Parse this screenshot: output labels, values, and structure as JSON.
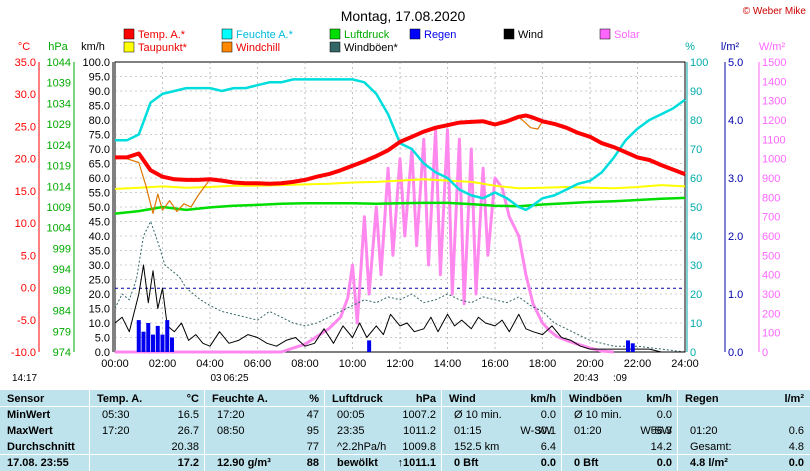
{
  "chart_data": {
    "type": "line",
    "title": "Montag, 17.08.2020",
    "copyright": "© Weber Mike",
    "x_ticks": [
      "00:00",
      "02:00",
      "04:00",
      "06:00",
      "08:00",
      "10:00",
      "12:00",
      "14:00",
      "16:00",
      "18:00",
      "20:00",
      "22:00",
      "24:00"
    ],
    "axes": {
      "temp": {
        "unit": "°C",
        "ticks": [
          "35.0",
          "30.0",
          "25.0",
          "20.0",
          "15.0",
          "10.0",
          "5.0",
          "0.0",
          "-5.0",
          "-10.0"
        ],
        "range": [
          -10,
          35
        ],
        "color": "#ff0000"
      },
      "pressure": {
        "unit": "hPa",
        "ticks": [
          "1044",
          "1039",
          "1034",
          "1029",
          "1024",
          "1019",
          "1014",
          "1009",
          "1004",
          "999",
          "994",
          "989",
          "984",
          "979",
          "974"
        ],
        "range": [
          974,
          1044
        ],
        "color": "#00aa00"
      },
      "wind": {
        "unit": "km/h",
        "ticks": [
          "100.0",
          "95.0",
          "90.0",
          "85.0",
          "80.0",
          "75.0",
          "70.0",
          "65.0",
          "60.0",
          "55.0",
          "50.0",
          "45.0",
          "40.0",
          "35.0",
          "30.0",
          "25.0",
          "20.0",
          "15.0",
          "10.0",
          "5.0",
          "0.0"
        ],
        "range": [
          0,
          100
        ],
        "color": "#000000"
      },
      "humidity": {
        "unit": "%",
        "ticks": [
          "100",
          "90",
          "80",
          "70",
          "60",
          "50",
          "40",
          "30",
          "20",
          "10",
          "0"
        ],
        "range": [
          0,
          100
        ],
        "color": "#00aaaa"
      },
      "rain": {
        "unit": "l/m²",
        "ticks": [
          "5.0",
          "4.0",
          "3.0",
          "2.0",
          "1.0",
          "0.0"
        ],
        "range": [
          0,
          5
        ],
        "color": "#0000aa"
      },
      "solar": {
        "unit": "W/m²",
        "ticks": [
          "1500",
          "1400",
          "1300",
          "1200",
          "1100",
          "1000",
          "900",
          "800",
          "700",
          "600",
          "500",
          "400",
          "300",
          "200",
          "100",
          "0"
        ],
        "range": [
          0,
          1500
        ],
        "color": "#ff66ff"
      }
    },
    "legend": [
      {
        "name": "Temp. A.*",
        "color": "#ff0000"
      },
      {
        "name": "Feuchte A.*",
        "color": "#00ffff"
      },
      {
        "name": "Luftdruck",
        "color": "#00dd00"
      },
      {
        "name": "Regen",
        "color": "#0000ff"
      },
      {
        "name": "Wind",
        "color": "#000000"
      },
      {
        "name": "Solar",
        "color": "#ff66ff"
      },
      {
        "name": "Taupunkt*",
        "color": "#ffff00"
      },
      {
        "name": "Windchill",
        "color": "#ff8800"
      },
      {
        "name": "Windböen*",
        "color": "#336666"
      }
    ],
    "series": [
      {
        "name": "Temp. A.*",
        "axis": "temp",
        "color": "#ff0000",
        "x": [
          0,
          0.5,
          1,
          1.5,
          2,
          2.5,
          3,
          3.5,
          4,
          4.5,
          5,
          5.5,
          6,
          6.5,
          7,
          7.5,
          8,
          8.5,
          9,
          9.5,
          10,
          10.5,
          11,
          11.5,
          12,
          12.5,
          13,
          13.5,
          14,
          14.5,
          15,
          15.5,
          16,
          16.5,
          17,
          17.3,
          17.5,
          18,
          18.5,
          19,
          19.5,
          20,
          20.5,
          21,
          21.5,
          22,
          22.5,
          23,
          23.5,
          24
        ],
        "y": [
          20.2,
          20.2,
          20.8,
          18.2,
          17.2,
          16.8,
          16.7,
          16.7,
          16.8,
          16.6,
          16.3,
          16.2,
          16.2,
          16.1,
          16.2,
          16.4,
          16.7,
          17.2,
          17.6,
          18.2,
          18.9,
          19.6,
          20.4,
          21.3,
          22.6,
          23.4,
          24.2,
          24.8,
          25.2,
          25.6,
          25.7,
          25.8,
          25.3,
          25.8,
          26.5,
          26.7,
          26.5,
          25.8,
          25.4,
          24.8,
          24.0,
          23.4,
          22.4,
          21.8,
          21.0,
          20.2,
          19.8,
          19.0,
          18.3,
          17.6
        ]
      },
      {
        "name": "Feuchte A.*",
        "axis": "humidity",
        "color": "#00dddd",
        "x": [
          0,
          0.5,
          1,
          1.5,
          2,
          2.5,
          3,
          3.5,
          4,
          4.5,
          5,
          5.5,
          6,
          6.5,
          7,
          7.5,
          8,
          8.5,
          9,
          9.5,
          10,
          10.5,
          11,
          11.5,
          12,
          12.5,
          13,
          13.5,
          14,
          14.5,
          15,
          15.5,
          16,
          16.5,
          17,
          17.3,
          17.5,
          18,
          18.5,
          19,
          19.5,
          20,
          20.5,
          21,
          21.5,
          22,
          22.5,
          23,
          23.5,
          24
        ],
        "y": [
          73,
          73,
          75,
          86,
          89,
          90,
          91,
          91,
          91,
          90,
          91,
          91,
          92,
          93,
          93,
          94,
          94,
          94,
          94,
          94,
          94,
          93,
          89,
          82,
          72,
          70,
          65,
          62,
          60,
          56,
          54,
          53,
          55,
          53,
          50,
          49,
          50,
          53,
          54,
          56,
          58,
          59,
          62,
          67,
          73,
          77,
          80,
          82,
          84,
          87
        ]
      },
      {
        "name": "Luftdruck",
        "axis": "pressure",
        "color": "#00dd00",
        "x": [
          0,
          1,
          2,
          3,
          4,
          5,
          6,
          7,
          8,
          9,
          10,
          11,
          12,
          13,
          14,
          15,
          16,
          17,
          18,
          19,
          20,
          21,
          22,
          23,
          24
        ],
        "y": [
          1007.4,
          1008.0,
          1009.0,
          1008.3,
          1008.9,
          1009.3,
          1009.5,
          1009.8,
          1009.9,
          1009.9,
          1009.9,
          1009.8,
          1009.9,
          1010.0,
          1010.0,
          1009.7,
          1009.3,
          1009.2,
          1009.6,
          1009.9,
          1010.2,
          1010.4,
          1010.7,
          1011.0,
          1011.2
        ]
      },
      {
        "name": "Taupunkt*",
        "axis": "temp",
        "color": "#ffff00",
        "x": [
          0,
          1,
          2,
          3,
          4,
          5,
          6,
          7,
          8,
          9,
          10,
          11,
          12,
          13,
          14,
          15,
          16,
          17,
          18,
          19,
          20,
          21,
          22,
          23,
          24
        ],
        "y": [
          15.3,
          15.5,
          15.7,
          15.5,
          15.6,
          15.8,
          15.8,
          15.9,
          16.0,
          16.1,
          16.3,
          16.4,
          16.6,
          16.8,
          16.6,
          16.4,
          15.8,
          15.4,
          15.5,
          15.6,
          15.5,
          15.4,
          15.6,
          15.9,
          15.7
        ]
      },
      {
        "name": "Windchill",
        "axis": "temp",
        "color": "#dd7700",
        "x": [
          0,
          0.5,
          1,
          1.3,
          1.6,
          1.8,
          2,
          2.3,
          2.6,
          2.9,
          3.2,
          3.5,
          4,
          4.5,
          5,
          5.5,
          6,
          6.5,
          7,
          7.5,
          8,
          8.5,
          9,
          9.5,
          10,
          10.5,
          11,
          11.5,
          12,
          12.5,
          13,
          13.5,
          14,
          14.5,
          15,
          15.5,
          16,
          16.5,
          17,
          17.3,
          17.5,
          17.8,
          18,
          18.5,
          19
        ],
        "y": [
          20.2,
          20.0,
          19.4,
          15.8,
          11.5,
          14.5,
          12.0,
          13.5,
          11.8,
          13.0,
          12.5,
          14.3,
          16.8,
          16.5,
          16.3,
          16.2,
          16.2,
          16.1,
          16.2,
          16.4,
          16.7,
          17.2,
          17.6,
          18.2,
          18.9,
          19.6,
          20.4,
          21.3,
          22.6,
          23.4,
          24.2,
          24.8,
          25.2,
          25.6,
          25.7,
          25.8,
          25.3,
          25.8,
          26.5,
          25.5,
          24.8,
          24.6,
          25.8,
          25.4,
          24.8
        ]
      },
      {
        "name": "Wind",
        "axis": "wind",
        "color": "#000000",
        "x": [
          0,
          0.3,
          0.6,
          1,
          1.2,
          1.4,
          1.6,
          1.8,
          2,
          2.2,
          2.5,
          2.8,
          3.1,
          3.4,
          3.7,
          4,
          4.4,
          4.8,
          5.2,
          5.6,
          6,
          6.4,
          6.8,
          7.2,
          7.6,
          8,
          8.4,
          8.8,
          9.2,
          9.6,
          10,
          10.3,
          10.6,
          11,
          11.3,
          11.6,
          12,
          12.3,
          12.6,
          13,
          13.3,
          13.6,
          14,
          14.3,
          14.6,
          15,
          15.3,
          15.6,
          16,
          16.3,
          16.6,
          17,
          17.3,
          17.6,
          18,
          18.4,
          18.8,
          19.2,
          19.6,
          20,
          20.5,
          21,
          21.5,
          22,
          22.5,
          23,
          23.5,
          24
        ],
        "y": [
          10,
          12,
          7,
          20,
          30,
          17,
          28,
          15,
          22,
          9,
          7,
          10,
          4,
          6,
          3,
          2,
          7,
          3,
          4,
          6,
          5,
          3,
          2,
          4,
          5,
          2,
          3,
          8,
          3,
          9,
          5,
          10,
          5,
          9,
          6,
          13,
          9,
          10,
          7,
          8,
          12,
          7,
          13,
          9,
          11,
          8,
          12,
          10,
          9,
          11,
          7,
          13,
          8,
          7,
          6,
          9,
          5,
          4,
          2,
          1,
          1,
          1,
          1,
          1,
          1,
          0,
          0,
          0
        ]
      },
      {
        "name": "Windböen*",
        "axis": "wind",
        "color": "#336666",
        "x": [
          0,
          0.3,
          0.6,
          0.9,
          1.2,
          1.5,
          1.8,
          2.1,
          2.4,
          2.7,
          3,
          3.3,
          3.6,
          4,
          4.5,
          5,
          5.5,
          6,
          6.5,
          7,
          7.5,
          8,
          8.5,
          9,
          9.5,
          10,
          10.5,
          11,
          11.5,
          12,
          12.5,
          13,
          13.5,
          14,
          14.5,
          15,
          15.5,
          16,
          16.5,
          17,
          17.5,
          18,
          18.5,
          19,
          19.5,
          20,
          20.5,
          21,
          21.5,
          22,
          23,
          24
        ],
        "y": [
          15,
          20,
          18,
          25,
          40,
          45,
          38,
          30,
          28,
          26,
          22,
          20,
          18,
          16,
          14,
          13,
          12,
          11,
          14,
          12,
          10,
          9,
          10,
          12,
          14,
          16,
          18,
          17,
          19,
          18,
          20,
          17,
          18,
          20,
          18,
          17,
          19,
          18,
          17,
          19,
          16,
          14,
          10,
          8,
          6,
          4,
          3,
          2,
          2,
          2,
          1,
          0
        ]
      },
      {
        "name": "Solar",
        "axis": "solar",
        "color": "#ff88ee",
        "x": [
          0,
          4,
          6,
          7,
          7.5,
          8,
          8.5,
          9,
          9.5,
          9.8,
          10,
          10.2,
          10.5,
          10.7,
          11,
          11.2,
          11.5,
          11.7,
          12,
          12.2,
          12.5,
          12.7,
          13,
          13.2,
          13.5,
          13.7,
          14,
          14.2,
          14.5,
          14.7,
          15,
          15.2,
          15.5,
          15.7,
          16,
          16.3,
          16.6,
          17,
          17.3,
          17.6,
          18,
          18.3,
          18.6,
          19,
          19.5,
          20,
          20.5,
          21
        ],
        "y": [
          0,
          0,
          0,
          0,
          20,
          40,
          80,
          120,
          180,
          280,
          450,
          150,
          700,
          300,
          750,
          400,
          950,
          500,
          1000,
          600,
          1050,
          550,
          1100,
          450,
          1150,
          400,
          1150,
          300,
          1100,
          250,
          1050,
          300,
          950,
          500,
          900,
          850,
          700,
          600,
          400,
          250,
          150,
          110,
          80,
          60,
          40,
          20,
          5,
          0
        ]
      },
      {
        "name": "Regen",
        "axis": "rain",
        "color": "#0000ee",
        "type": "bar",
        "x": [
          1.0,
          1.2,
          1.4,
          1.6,
          1.8,
          2.0,
          2.2,
          2.4,
          10.7,
          21.6,
          21.8
        ],
        "y": [
          0.55,
          0.35,
          0.5,
          0.3,
          0.45,
          0.3,
          0.55,
          0.25,
          0.2,
          0.2,
          0.15
        ]
      }
    ],
    "reference_line": {
      "axis": "rain",
      "value": 1.1,
      "color": "#0000aa"
    },
    "below_axis_labels": {
      "left": "14:17",
      "min_time": "06:25",
      "bottom_mid": "03",
      "sunset": "20:43",
      "sunset_b": ":09"
    },
    "grid": true
  },
  "table": {
    "sections": [
      {
        "h1": "Sensor",
        "rows": [
          "MinWert",
          "MaxWert",
          "Durchschnitt",
          "17.08. 23:55"
        ]
      },
      {
        "h1": "Temp. A.",
        "h2": "°C",
        "rows": [
          [
            "05:30",
            "16.5"
          ],
          [
            "17:20",
            "26.7"
          ],
          [
            "",
            "20.38"
          ],
          [
            "",
            "17.2"
          ]
        ]
      },
      {
        "h1": "Feuchte A.",
        "h2": "%",
        "rows": [
          [
            "17:20",
            "47"
          ],
          [
            "08:50",
            "95"
          ],
          [
            "",
            "77"
          ],
          [
            "12.90 g/m³",
            "88"
          ]
        ]
      },
      {
        "h1": "Luftdruck",
        "h2": "hPa",
        "rows": [
          [
            "00:05",
            "1007.2"
          ],
          [
            "23:35",
            "1011.2"
          ],
          [
            "^2.2hPa/h",
            "1009.8"
          ],
          [
            "bewölkt",
            "↑1011.1"
          ]
        ]
      },
      {
        "h1": "Wind",
        "h2": "km/h",
        "rows": [
          [
            "Ø 10 min.",
            "",
            "0.0"
          ],
          [
            "01:15",
            "W-SW",
            "30.1"
          ],
          [
            "152.5 km",
            "",
            "6.4"
          ],
          [
            "0 Bft",
            "",
            "0.0"
          ]
        ]
      },
      {
        "h1": "Windböen",
        "h2": "km/h",
        "rows": [
          [
            "Ø 10 min.",
            "",
            "0.0"
          ],
          [
            "01:20",
            "W-SW",
            "56.3"
          ],
          [
            "",
            "",
            "14.2"
          ],
          [
            "0 Bft",
            "",
            "0.0"
          ]
        ]
      },
      {
        "h1": "Regen",
        "h2": "l/m²",
        "rows": [
          [
            "",
            ""
          ],
          [
            "01:20",
            "0.6"
          ],
          [
            "Gesamt:",
            "4.8"
          ],
          [
            "4.8 l/m²",
            "0.0"
          ]
        ]
      }
    ]
  }
}
